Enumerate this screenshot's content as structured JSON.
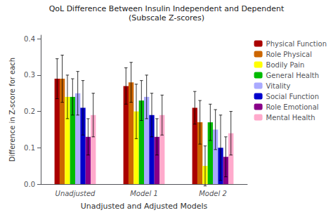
{
  "chart_data": {
    "type": "bar",
    "title": "QoL Difference Between Insulin Independent and Dependent",
    "subtitle": "(Subscale Z-scores)",
    "xlabel": "Unadjusted and Adjusted Models",
    "ylabel": "Difference in Z-score for each",
    "categories": [
      "Unadjusted",
      "Model 1",
      "Model 2"
    ],
    "series": [
      {
        "name": "Physical Function",
        "color": "#aa0000",
        "values": [
          0.29,
          0.27,
          0.21
        ],
        "errors": [
          0.055,
          0.05,
          0.045
        ]
      },
      {
        "name": "Role Physical",
        "color": "#cc6600",
        "values": [
          0.29,
          0.28,
          0.17
        ],
        "errors": [
          0.065,
          0.055,
          0.06
        ]
      },
      {
        "name": "Bodily Pain",
        "color": "#ffff00",
        "values": [
          0.24,
          0.2,
          0.05
        ],
        "errors": [
          0.06,
          0.075,
          0.055
        ]
      },
      {
        "name": "General Health",
        "color": "#00bb00",
        "values": [
          0.24,
          0.23,
          0.17
        ],
        "errors": [
          0.05,
          0.055,
          0.05
        ]
      },
      {
        "name": "Vitality",
        "color": "#aaaaff",
        "values": [
          0.25,
          0.24,
          0.15
        ],
        "errors": [
          0.06,
          0.06,
          0.055
        ]
      },
      {
        "name": "Social Function",
        "color": "#0000cc",
        "values": [
          0.21,
          0.19,
          0.1
        ],
        "errors": [
          0.075,
          0.06,
          0.09
        ]
      },
      {
        "name": "Role Emotional",
        "color": "#880088",
        "values": [
          0.13,
          0.13,
          0.075
        ],
        "errors": [
          0.05,
          0.05,
          0.055
        ]
      },
      {
        "name": "Mental Health",
        "color": "#ffaacc",
        "values": [
          0.19,
          0.19,
          0.14
        ],
        "errors": [
          0.06,
          0.055,
          0.06
        ]
      }
    ],
    "ylim": [
      0.0,
      0.41
    ],
    "yticks": [
      {
        "value": 0.0,
        "label": "0.0"
      },
      0.1,
      0.2,
      0.3,
      0.4
    ],
    "grid": false,
    "legend": "right"
  }
}
